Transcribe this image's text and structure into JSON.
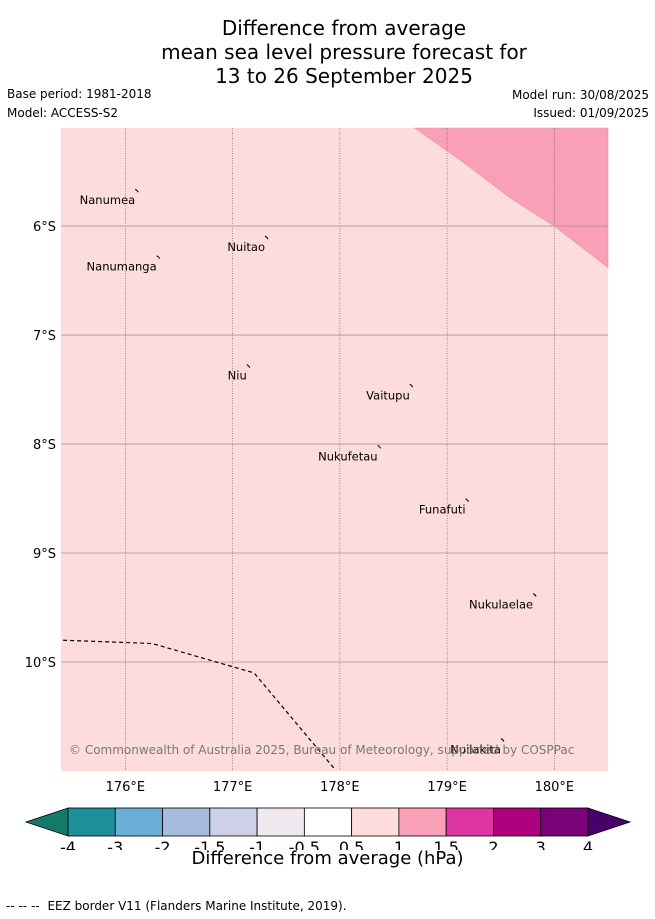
{
  "title": {
    "line1": "Difference from average",
    "line2": "mean sea level pressure forecast for",
    "line3": "13 to 26 September 2025"
  },
  "meta": {
    "base_period": "Base period: 1981-2018",
    "model": "Model: ACCESS-S2",
    "model_run": "Model run: 30/08/2025",
    "issued": "Issued: 01/09/2025"
  },
  "map": {
    "lon_range": [
      175.4,
      180.5
    ],
    "lat_range": [
      -11.0,
      -5.1
    ],
    "lon_ticks": [
      {
        "value": 176,
        "label": "176°E"
      },
      {
        "value": 177,
        "label": "177°E"
      },
      {
        "value": 178,
        "label": "178°E"
      },
      {
        "value": 179,
        "label": "179°E"
      },
      {
        "value": 180,
        "label": "180°E"
      }
    ],
    "lat_ticks": [
      {
        "value": -6,
        "label": "6°S"
      },
      {
        "value": -7,
        "label": "7°S"
      },
      {
        "value": -8,
        "label": "8°S"
      },
      {
        "value": -9,
        "label": "9°S"
      },
      {
        "value": -10,
        "label": "10°S"
      }
    ],
    "background_color": "#fddddb",
    "anomaly_region_color": "#f9a0b8",
    "grid": true,
    "islands": [
      {
        "name": "Nanumea",
        "lon": 176.12,
        "lat": -5.68
      },
      {
        "name": "Nuitao",
        "lon": 177.33,
        "lat": -6.11
      },
      {
        "name": "Nanumanga",
        "lon": 176.32,
        "lat": -6.29
      },
      {
        "name": "Niu",
        "lon": 177.16,
        "lat": -7.29
      },
      {
        "name": "Vaitupu",
        "lon": 178.68,
        "lat": -7.47
      },
      {
        "name": "Nukufetau",
        "lon": 178.38,
        "lat": -8.03
      },
      {
        "name": "Funafuti",
        "lon": 179.2,
        "lat": -8.52
      },
      {
        "name": "Nukulaelae",
        "lon": 179.83,
        "lat": -9.39
      },
      {
        "name": "Nuilakita",
        "lon": 179.53,
        "lat": -10.72
      }
    ],
    "eez_border": [
      [
        175.42,
        -9.8
      ],
      [
        176.25,
        -9.83
      ],
      [
        177.2,
        -10.1
      ],
      [
        177.95,
        -10.98
      ]
    ],
    "copyright": "© Commonwealth of Australia 2025, Bureau of Meteorology, supported by COSPPac"
  },
  "colorbar": {
    "label": "Difference from average (hPa)",
    "ticks": [
      "-4",
      "-3",
      "-2",
      "-1.5",
      "-1",
      "-0.5",
      "0.5",
      "1",
      "1.5",
      "2",
      "3",
      "4"
    ],
    "colors": [
      "#1e9099",
      "#69aed4",
      "#a7bbdf",
      "#cdd0e6",
      "#f0e8ef",
      "#ffffff",
      "#fddddb",
      "#f9a0b8",
      "#dd35a1",
      "#ae017e",
      "#7a0177"
    ],
    "under_color": "#137a6a",
    "over_color": "#49006a"
  },
  "footnote": {
    "symbol": "-- -- --",
    "text": "EEZ border V11 (Flanders Marine Institute, 2019)."
  }
}
